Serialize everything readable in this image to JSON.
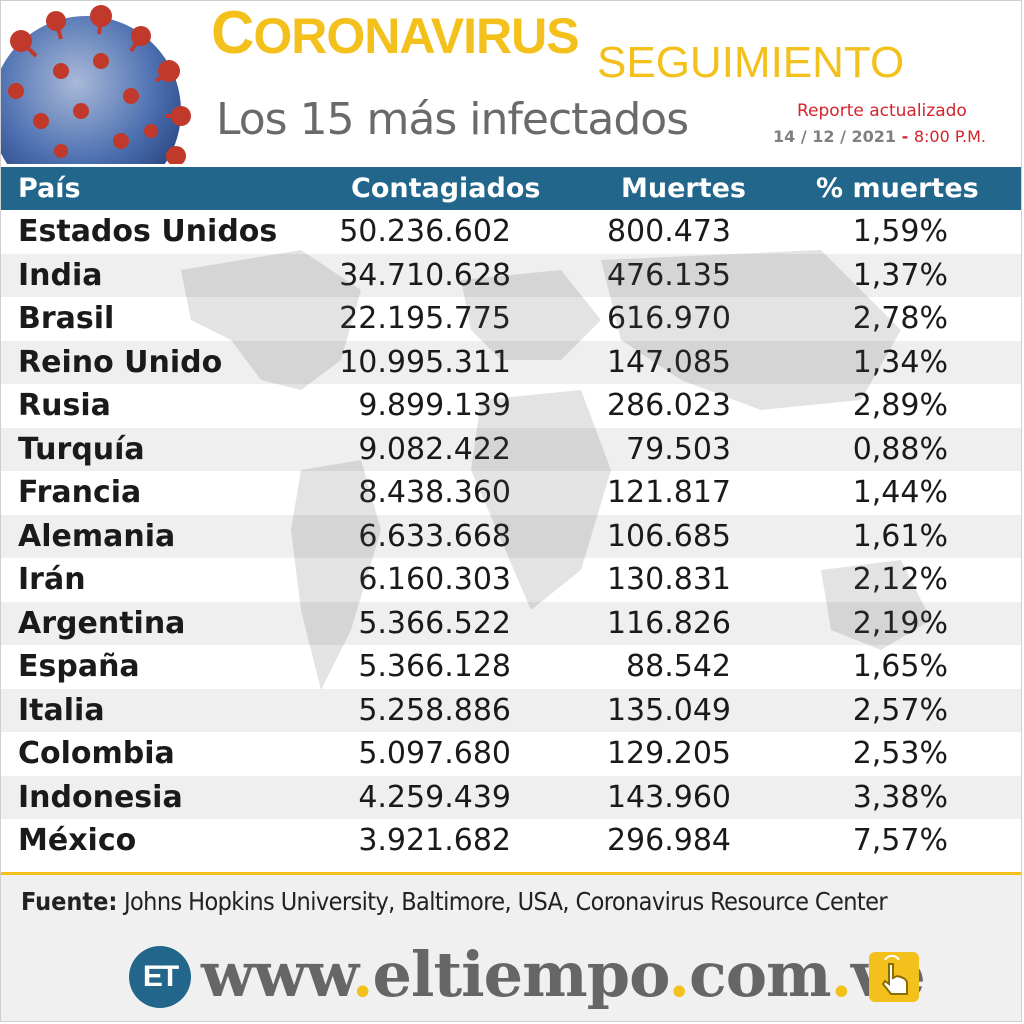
{
  "header": {
    "title_initial": "C",
    "title_rest": "ORONAVIRUS",
    "title_small": "SEGUIMIENTO",
    "subtitle": "Los 15 más infectados",
    "report_label": "Reporte actualizado",
    "report_date": "14 / 12 / 2021",
    "report_sep": " - ",
    "report_time": "8:00 P.M."
  },
  "table": {
    "headers": [
      "País",
      "Contagiados",
      "Muertes",
      "% muertes"
    ],
    "rows": [
      [
        "Estados Unidos",
        "50.236.602",
        "800.473",
        "1,59%"
      ],
      [
        "India",
        "34.710.628",
        "476.135",
        "1,37%"
      ],
      [
        "Brasil",
        "22.195.775",
        "616.970",
        "2,78%"
      ],
      [
        "Reino Unido",
        "10.995.311",
        "147.085",
        "1,34%"
      ],
      [
        "Rusia",
        "9.899.139",
        "286.023",
        "2,89%"
      ],
      [
        "Turquía",
        "9.082.422",
        "79.503",
        "0,88%"
      ],
      [
        "Francia",
        "8.438.360",
        "121.817",
        "1,44%"
      ],
      [
        "Alemania",
        "6.633.668",
        "106.685",
        "1,61%"
      ],
      [
        "Irán",
        "6.160.303",
        "130.831",
        "2,12%"
      ],
      [
        "Argentina",
        "5.366.522",
        "116.826",
        "2,19%"
      ],
      [
        "España",
        "5.366.128",
        "88.542",
        "1,65%"
      ],
      [
        "Italia",
        "5.258.886",
        "135.049",
        "2,57%"
      ],
      [
        "Colombia",
        "5.097.680",
        "129.205",
        "2,53%"
      ],
      [
        "Indonesia",
        "4.259.439",
        "143.960",
        "3,38%"
      ],
      [
        "México",
        "3.921.682",
        "296.984",
        "7,57%"
      ]
    ]
  },
  "footer": {
    "source_label": "Fuente:",
    "source_text": " Johns Hopkins University, Baltimore, USA, Coronavirus Resource Center",
    "logo_text": "ET",
    "site_parts": [
      "www",
      ".",
      "eltiempo",
      ".",
      "com",
      ".",
      "ve"
    ]
  },
  "colors": {
    "accent_yellow": "#f3c01c",
    "header_blue": "#22668c",
    "report_red": "#d4232b",
    "icons": [
      "coronavirus-illustration",
      "world-map-background",
      "hand-pointer-icon"
    ]
  }
}
